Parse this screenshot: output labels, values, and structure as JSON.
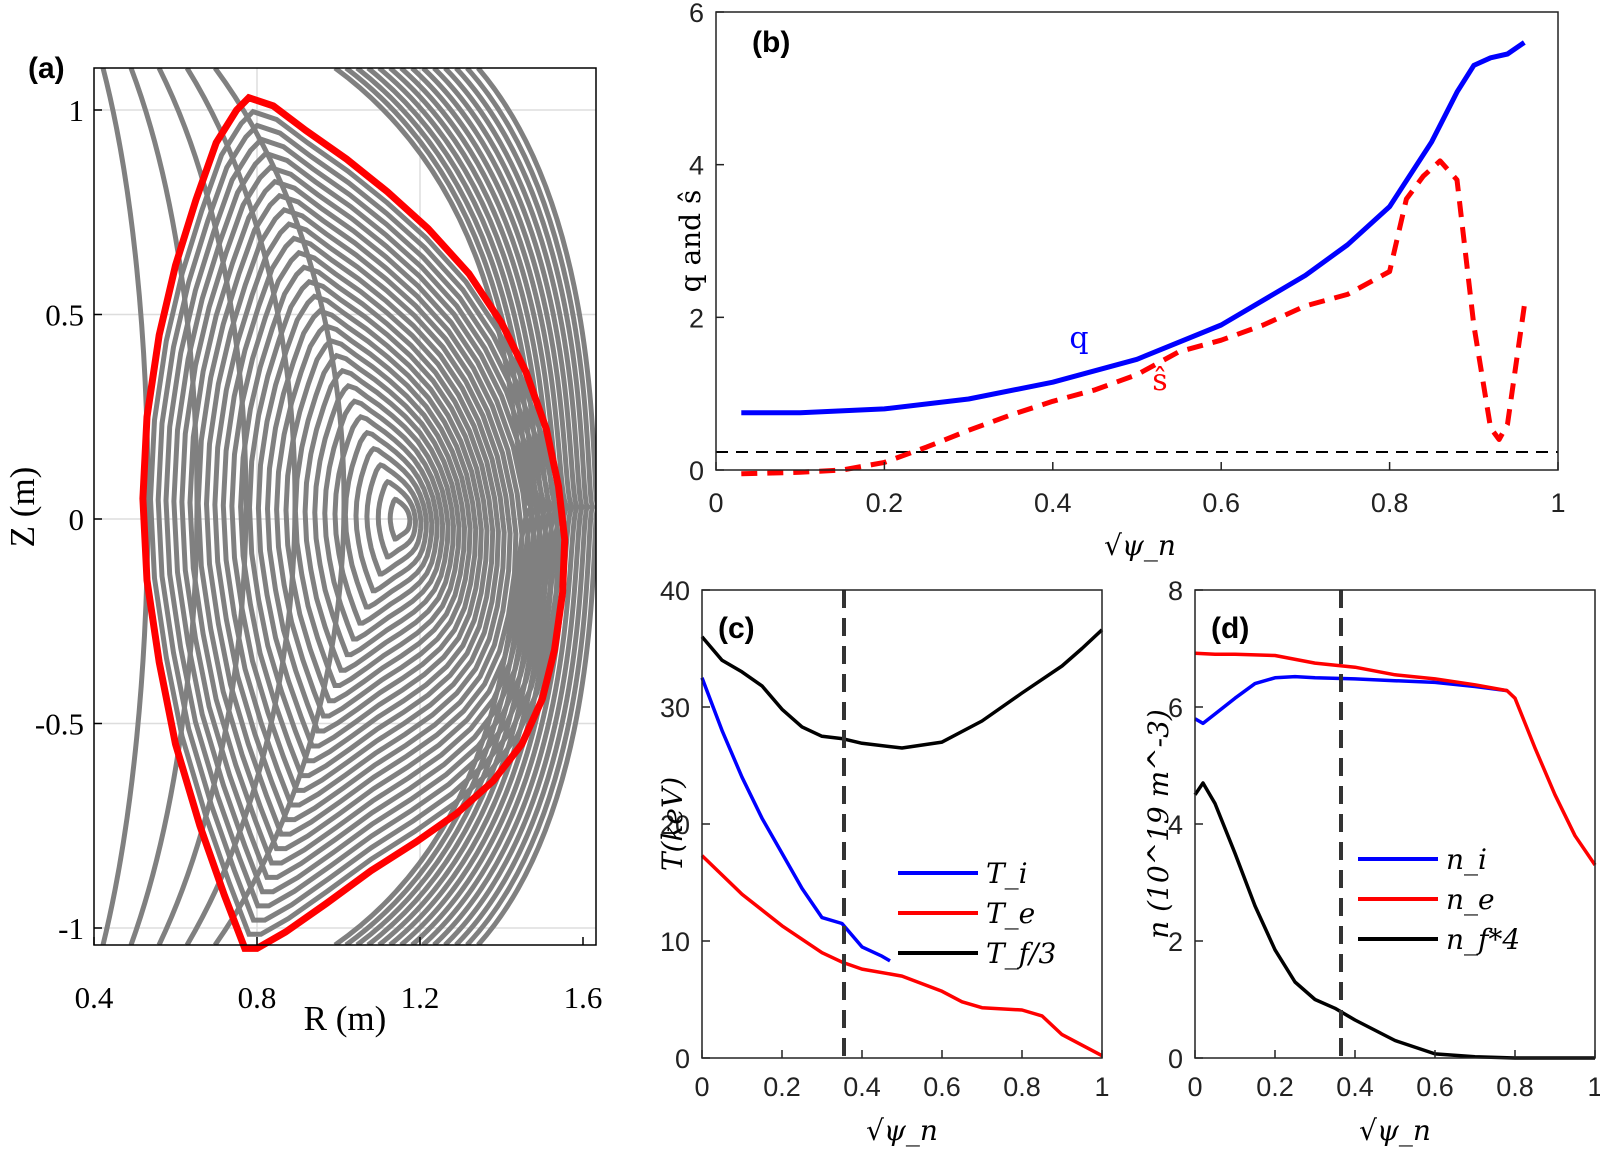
{
  "chart_data": [
    {
      "panel": "(a)",
      "type": "contour",
      "xlabel": "R (m)",
      "ylabel": "Z (m)",
      "xlim": [
        0.4,
        1.6
      ],
      "ylim": [
        -1.05,
        1.05
      ],
      "xticks": [
        "0.4",
        "0.8",
        "1.2",
        "1.6"
      ],
      "yticks": [
        "-1",
        "-0.5",
        "0",
        "0.5",
        "1"
      ],
      "grid": true,
      "magnetic_axis": {
        "R": 1.16,
        "Z": 0.0
      },
      "separatrix": {
        "color": "#ff0000",
        "R": [
          0.78,
          0.84,
          0.92,
          1.02,
          1.12,
          1.22,
          1.32,
          1.4,
          1.46,
          1.51,
          1.54,
          1.555,
          1.55,
          1.53,
          1.5,
          1.45,
          1.38,
          1.29,
          1.19,
          1.08,
          0.97,
          0.87,
          0.8,
          0.77,
          0.72,
          0.66,
          0.6,
          0.56,
          0.53,
          0.52,
          0.53,
          0.56,
          0.6,
          0.65,
          0.7,
          0.75,
          0.78
        ],
        "Z": [
          1.03,
          1.01,
          0.95,
          0.88,
          0.8,
          0.71,
          0.6,
          0.48,
          0.36,
          0.22,
          0.08,
          -0.05,
          -0.18,
          -0.32,
          -0.44,
          -0.55,
          -0.64,
          -0.72,
          -0.79,
          -0.86,
          -0.94,
          -1.01,
          -1.05,
          -1.05,
          -0.92,
          -0.75,
          -0.55,
          -0.35,
          -0.15,
          0.05,
          0.25,
          0.45,
          0.62,
          0.78,
          0.92,
          1.0,
          1.03
        ]
      },
      "flux_contour_color": "#808080"
    },
    {
      "panel": "(b)",
      "type": "line",
      "xlabel": "√ψ_n",
      "ylabel": "q and ŝ",
      "xlim": [
        0,
        1
      ],
      "ylim": [
        0,
        6
      ],
      "xticks": [
        "0",
        "0.2",
        "0.4",
        "0.6",
        "0.8",
        "1"
      ],
      "yticks": [
        "0",
        "2",
        "4",
        "6"
      ],
      "series": [
        {
          "name": "q",
          "color": "#0000ff",
          "dash": "solid",
          "x": [
            0.03,
            0.1,
            0.2,
            0.3,
            0.4,
            0.5,
            0.6,
            0.7,
            0.75,
            0.8,
            0.85,
            0.88,
            0.9,
            0.92,
            0.94,
            0.96
          ],
          "y": [
            0.75,
            0.75,
            0.8,
            0.93,
            1.15,
            1.45,
            1.9,
            2.55,
            2.95,
            3.45,
            4.3,
            4.95,
            5.3,
            5.4,
            5.45,
            5.6
          ]
        },
        {
          "name": "ŝ",
          "color": "#ff0000",
          "dash": "dashed",
          "x": [
            0.03,
            0.1,
            0.15,
            0.2,
            0.25,
            0.3,
            0.35,
            0.4,
            0.45,
            0.5,
            0.55,
            0.6,
            0.65,
            0.7,
            0.75,
            0.8,
            0.82,
            0.84,
            0.86,
            0.88,
            0.9,
            0.92,
            0.93,
            0.94,
            0.96
          ],
          "y": [
            -0.05,
            -0.03,
            0.0,
            0.1,
            0.3,
            0.52,
            0.72,
            0.9,
            1.05,
            1.25,
            1.55,
            1.7,
            1.9,
            2.15,
            2.3,
            2.6,
            3.55,
            3.85,
            4.05,
            3.8,
            1.9,
            0.55,
            0.4,
            0.6,
            2.15
          ]
        }
      ],
      "annotations": [
        {
          "text": "q",
          "color": "#0000ff",
          "x": 0.5,
          "y": 1.55
        },
        {
          "text": "ŝ",
          "color": "#ff0000",
          "x": 0.51,
          "y": 0.95
        }
      ],
      "reference_line": {
        "y": 0,
        "style": "dashed",
        "color": "#000000"
      }
    },
    {
      "panel": "(c)",
      "type": "line",
      "xlabel": "√ψ_n",
      "ylabel": "T(keV)",
      "xlim": [
        0,
        1
      ],
      "ylim": [
        0,
        40
      ],
      "xticks": [
        "0",
        "0.2",
        "0.4",
        "0.6",
        "0.8",
        "1"
      ],
      "yticks": [
        "0",
        "10",
        "20",
        "30",
        "40"
      ],
      "legend": "center-right",
      "series": [
        {
          "name": "T_i",
          "color": "#0000ff",
          "x": [
            0.0,
            0.05,
            0.1,
            0.15,
            0.2,
            0.25,
            0.3,
            0.35,
            0.4,
            0.45,
            0.47
          ],
          "y": [
            32.5,
            28.0,
            24.0,
            20.5,
            17.5,
            14.5,
            12.0,
            11.5,
            9.5,
            8.7,
            8.3
          ]
        },
        {
          "name": "T_e",
          "color": "#ff0000",
          "x": [
            0.0,
            0.1,
            0.2,
            0.3,
            0.35,
            0.4,
            0.5,
            0.6,
            0.65,
            0.7,
            0.8,
            0.85,
            0.9,
            1.0
          ],
          "y": [
            17.3,
            14.0,
            11.3,
            9.0,
            8.2,
            7.6,
            7.0,
            5.7,
            4.8,
            4.3,
            4.1,
            3.6,
            2.0,
            0.2
          ]
        },
        {
          "name": "T_f/3",
          "color": "#000000",
          "x": [
            0.0,
            0.05,
            0.1,
            0.15,
            0.2,
            0.25,
            0.3,
            0.35,
            0.4,
            0.5,
            0.6,
            0.7,
            0.8,
            0.9,
            0.95,
            1.0
          ],
          "y": [
            36.0,
            34.0,
            33.0,
            31.8,
            29.8,
            28.3,
            27.5,
            27.3,
            26.9,
            26.5,
            27.0,
            28.8,
            31.2,
            33.5,
            35.0,
            36.6
          ]
        }
      ],
      "vline": {
        "x": 0.36,
        "style": "dashed"
      }
    },
    {
      "panel": "(d)",
      "type": "line",
      "xlabel": "√ψ_n",
      "ylabel": "n (10^19 m^-3)",
      "xlim": [
        0,
        1
      ],
      "ylim": [
        0,
        8
      ],
      "xticks": [
        "0",
        "0.2",
        "0.4",
        "0.6",
        "0.8",
        "1"
      ],
      "yticks": [
        "0",
        "2",
        "4",
        "6",
        "8"
      ],
      "legend": "center-right",
      "series": [
        {
          "name": "n_i",
          "color": "#0000ff",
          "x": [
            0.0,
            0.02,
            0.05,
            0.1,
            0.15,
            0.2,
            0.25,
            0.3,
            0.4,
            0.5,
            0.6,
            0.7,
            0.78
          ],
          "y": [
            5.8,
            5.72,
            5.88,
            6.15,
            6.4,
            6.5,
            6.52,
            6.5,
            6.48,
            6.45,
            6.42,
            6.35,
            6.28
          ]
        },
        {
          "name": "n_e",
          "color": "#ff0000",
          "x": [
            0.0,
            0.05,
            0.1,
            0.2,
            0.3,
            0.4,
            0.5,
            0.6,
            0.7,
            0.78,
            0.8,
            0.85,
            0.9,
            0.95,
            1.0
          ],
          "y": [
            6.92,
            6.9,
            6.9,
            6.88,
            6.75,
            6.68,
            6.55,
            6.48,
            6.38,
            6.28,
            6.15,
            5.3,
            4.5,
            3.8,
            3.3
          ]
        },
        {
          "name": "n_f*4",
          "color": "#000000",
          "x": [
            0.0,
            0.02,
            0.05,
            0.1,
            0.15,
            0.2,
            0.25,
            0.3,
            0.35,
            0.4,
            0.5,
            0.6,
            0.7,
            0.8,
            0.9,
            1.0
          ],
          "y": [
            4.5,
            4.7,
            4.35,
            3.5,
            2.6,
            1.85,
            1.3,
            1.0,
            0.85,
            0.65,
            0.3,
            0.07,
            0.02,
            0.0,
            0.0,
            0.0
          ]
        }
      ],
      "vline": {
        "x": 0.36,
        "style": "dashed"
      }
    }
  ]
}
